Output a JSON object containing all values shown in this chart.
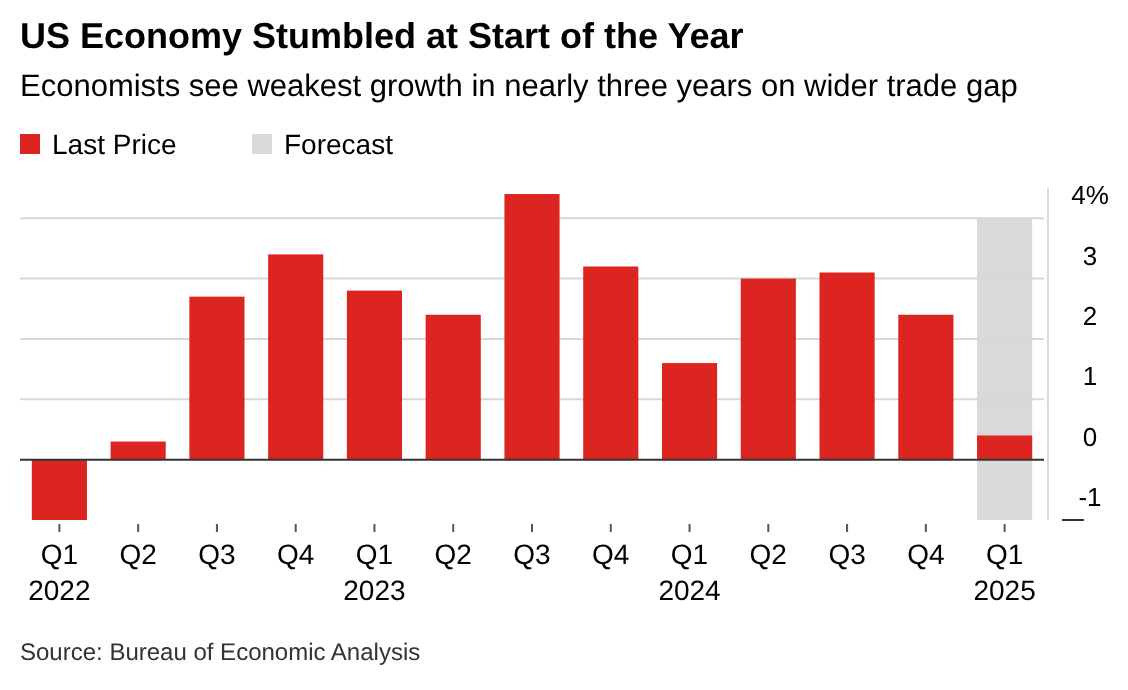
{
  "chart_data": {
    "type": "bar",
    "title": "US Economy Stumbled at Start of the Year",
    "subtitle": "Economists see weakest growth in nearly three years on wider trade gap",
    "categories": [
      "Q1\n2022",
      "Q2",
      "Q3",
      "Q4",
      "Q1\n2023",
      "Q2",
      "Q3",
      "Q4",
      "Q1\n2024",
      "Q2",
      "Q3",
      "Q4",
      "Q1\n2025"
    ],
    "series": [
      {
        "name": "Last Price",
        "color": "#dc2420",
        "values": [
          -1.0,
          0.3,
          2.7,
          3.4,
          2.8,
          2.4,
          4.4,
          3.2,
          1.6,
          3.0,
          3.1,
          2.4,
          0.4
        ]
      }
    ],
    "ylim": [
      -1,
      4.5
    ],
    "yticks": [
      -1,
      0,
      1,
      2,
      3,
      {
        "value": 4,
        "label": "4%"
      }
    ],
    "grid": "y",
    "legend": "top left",
    "bands": [
      {
        "axis": "x",
        "from": "Q1\n2025",
        "to": "Q1\n2025",
        "label": "Forecast",
        "color": "#d9d9d9"
      }
    ],
    "annotations": [
      "Source: Bureau of Economic Analysis"
    ]
  }
}
